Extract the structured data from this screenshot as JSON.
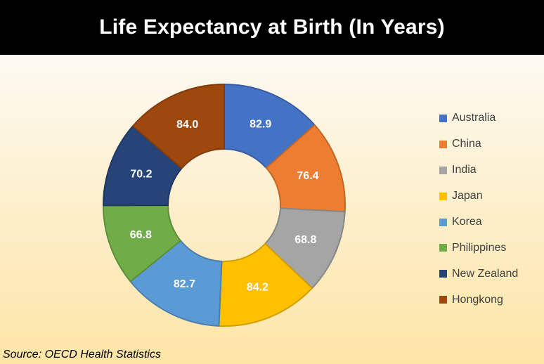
{
  "title": "Life Expectancy at Birth (In Years)",
  "source": "Source: OECD Health Statistics",
  "chart_data": {
    "type": "pie",
    "variant": "donut",
    "title": "Life Expectancy at Birth (In Years)",
    "categories": [
      "Australia",
      "China",
      "India",
      "Japan",
      "Korea",
      "Philippines",
      "New Zealand",
      "Hongkong"
    ],
    "values": [
      82.9,
      76.4,
      68.8,
      84.2,
      82.7,
      66.8,
      70.2,
      84.0
    ],
    "labels": [
      "82.9",
      "76.4",
      "68.8",
      "84.2",
      "82.7",
      "66.8",
      "70.2",
      "84.0"
    ],
    "colors": [
      "#4472c4",
      "#ed7d31",
      "#a5a5a5",
      "#ffc000",
      "#5b9bd5",
      "#70ad47",
      "#264478",
      "#9e480e"
    ],
    "legend_position": "right",
    "data_labels": true
  }
}
